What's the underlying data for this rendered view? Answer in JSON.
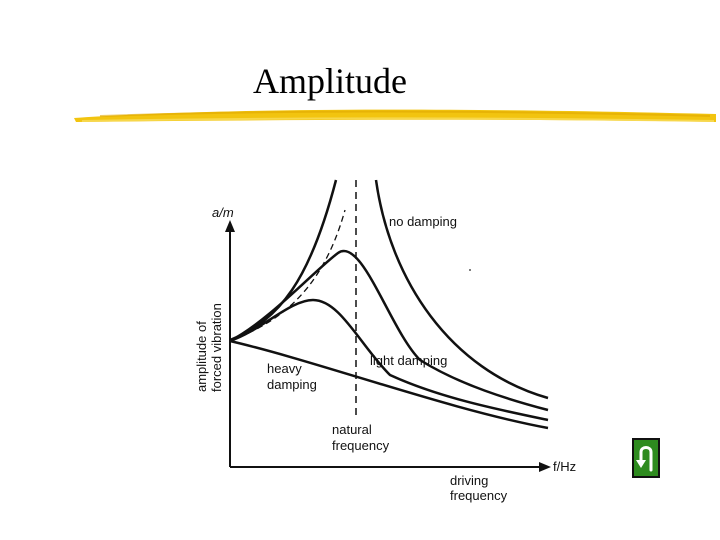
{
  "slide": {
    "title": "Amplitude"
  },
  "diagram": {
    "y_axis_unit": "a/m",
    "y_axis_caption_1": "amplitude of",
    "y_axis_caption_2": "forced vibration",
    "x_axis_unit": "f/Hz",
    "x_axis_caption_1": "driving",
    "x_axis_caption_2": "frequency",
    "natural_frequency_1": "natural",
    "natural_frequency_2": "frequency",
    "curve_no_damping": "no damping",
    "curve_light_damping": "light damping",
    "curve_heavy_damping_1": "heavy",
    "curve_heavy_damping_2": "damping"
  },
  "navigation": {
    "back_icon": "u-turn-back-arrow-icon",
    "button_color": "#2e8b1f"
  },
  "colors": {
    "title_underline": "#f2c40f"
  }
}
